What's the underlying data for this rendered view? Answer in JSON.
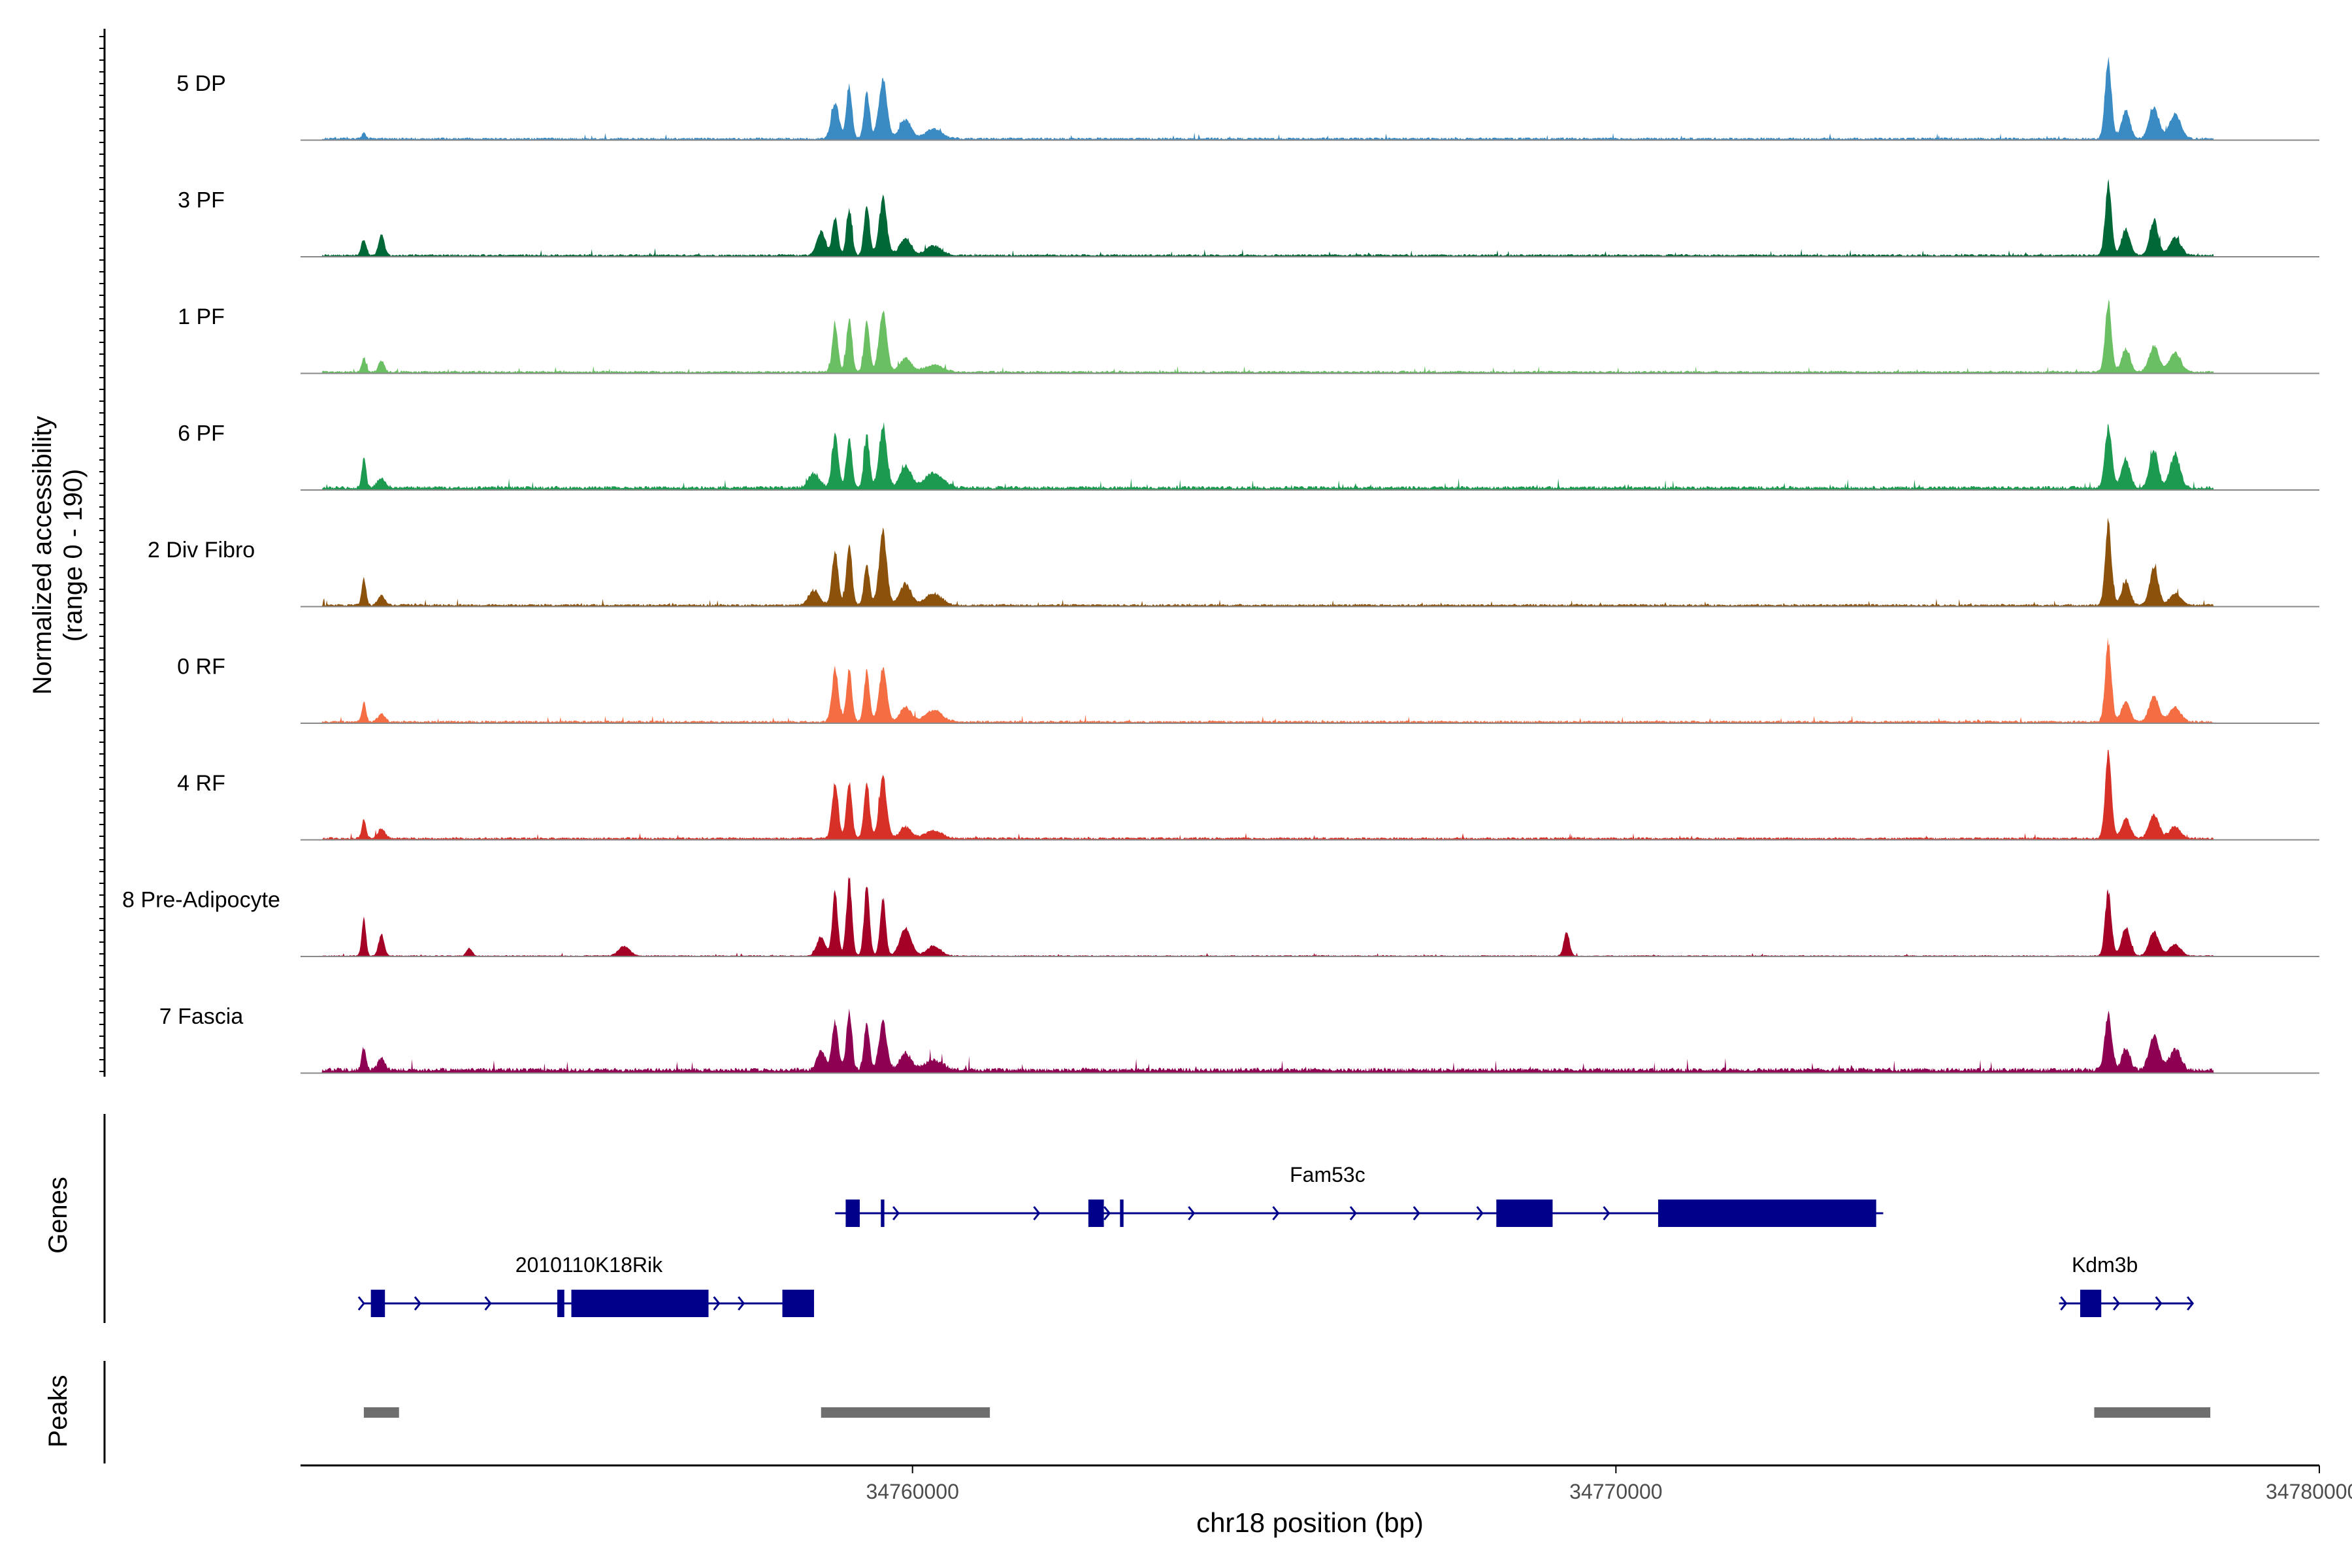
{
  "chart_data": {
    "type": "area",
    "title": "",
    "ylabel_line1": "Normalized accessibility",
    "ylabel_line2": "(range 0 - 190)",
    "ylim": [
      0,
      190
    ],
    "xlabel": "chr18 position (bp)",
    "xlim": [
      34751300,
      34780000
    ],
    "xticks": [
      {
        "value": 34760000,
        "label": "34760000"
      },
      {
        "value": 34770000,
        "label": "34770000"
      },
      {
        "value": 34780000,
        "label": "34780000"
      }
    ],
    "tracks": [
      {
        "name": "5 DP",
        "color": "#3a8ac4",
        "base": 2,
        "peaks": [
          [
            34752200,
            7,
            25
          ],
          [
            34758900,
            38,
            55
          ],
          [
            34759100,
            55,
            40
          ],
          [
            34759350,
            50,
            40
          ],
          [
            34759580,
            60,
            60
          ],
          [
            34759900,
            20,
            80
          ],
          [
            34760300,
            10,
            120
          ],
          [
            34777000,
            85,
            45
          ],
          [
            34777250,
            30,
            60
          ],
          [
            34777650,
            32,
            70
          ],
          [
            34777950,
            25,
            80
          ]
        ]
      },
      {
        "name": "3 PF",
        "color": "#006837",
        "base": 2,
        "peaks": [
          [
            34752200,
            17,
            35
          ],
          [
            34752450,
            22,
            40
          ],
          [
            34758700,
            25,
            60
          ],
          [
            34758900,
            40,
            40
          ],
          [
            34759100,
            48,
            40
          ],
          [
            34759350,
            52,
            40
          ],
          [
            34759580,
            58,
            55
          ],
          [
            34759900,
            18,
            80
          ],
          [
            34760300,
            10,
            110
          ],
          [
            34777000,
            75,
            45
          ],
          [
            34777250,
            28,
            60
          ],
          [
            34777650,
            36,
            60
          ],
          [
            34777950,
            18,
            80
          ]
        ]
      },
      {
        "name": "1 PF",
        "color": "#6abf62",
        "base": 2,
        "peaks": [
          [
            34752200,
            15,
            30
          ],
          [
            34752450,
            12,
            40
          ],
          [
            34758900,
            50,
            40
          ],
          [
            34759100,
            55,
            40
          ],
          [
            34759350,
            52,
            40
          ],
          [
            34759580,
            62,
            55
          ],
          [
            34759900,
            14,
            80
          ],
          [
            34760300,
            7,
            130
          ],
          [
            34777000,
            72,
            45
          ],
          [
            34777250,
            25,
            60
          ],
          [
            34777650,
            26,
            70
          ],
          [
            34777950,
            20,
            80
          ]
        ]
      },
      {
        "name": "6 PF",
        "color": "#1b9a50",
        "base": 3,
        "peaks": [
          [
            34752200,
            32,
            30
          ],
          [
            34752450,
            10,
            60
          ],
          [
            34758600,
            15,
            80
          ],
          [
            34758900,
            55,
            45
          ],
          [
            34759100,
            50,
            40
          ],
          [
            34759350,
            55,
            40
          ],
          [
            34759580,
            65,
            55
          ],
          [
            34759900,
            22,
            80
          ],
          [
            34760300,
            15,
            130
          ],
          [
            34777000,
            62,
            50
          ],
          [
            34777250,
            30,
            60
          ],
          [
            34777650,
            40,
            60
          ],
          [
            34777950,
            35,
            70
          ]
        ]
      },
      {
        "name": "2 Div Fibro",
        "color": "#8c510a",
        "base": 2,
        "peaks": [
          [
            34752200,
            28,
            30
          ],
          [
            34752450,
            10,
            50
          ],
          [
            34758600,
            15,
            80
          ],
          [
            34758900,
            55,
            45
          ],
          [
            34759100,
            65,
            40
          ],
          [
            34759350,
            42,
            40
          ],
          [
            34759580,
            75,
            55
          ],
          [
            34759900,
            22,
            80
          ],
          [
            34760300,
            12,
            120
          ],
          [
            34777000,
            85,
            45
          ],
          [
            34777250,
            25,
            60
          ],
          [
            34777650,
            40,
            60
          ],
          [
            34777950,
            12,
            80
          ]
        ]
      },
      {
        "name": "0 RF",
        "color": "#f46d43",
        "base": 2,
        "peaks": [
          [
            34752200,
            20,
            30
          ],
          [
            34752450,
            8,
            50
          ],
          [
            34758900,
            55,
            45
          ],
          [
            34759100,
            55,
            40
          ],
          [
            34759350,
            52,
            40
          ],
          [
            34759580,
            55,
            55
          ],
          [
            34759900,
            15,
            80
          ],
          [
            34760300,
            12,
            120
          ],
          [
            34777000,
            82,
            45
          ],
          [
            34777250,
            22,
            60
          ],
          [
            34777650,
            26,
            70
          ],
          [
            34777950,
            15,
            80
          ]
        ]
      },
      {
        "name": "4 RF",
        "color": "#d73027",
        "base": 2,
        "peaks": [
          [
            34752200,
            20,
            30
          ],
          [
            34752450,
            10,
            50
          ],
          [
            34758900,
            58,
            45
          ],
          [
            34759100,
            58,
            40
          ],
          [
            34759350,
            58,
            40
          ],
          [
            34759580,
            62,
            55
          ],
          [
            34759900,
            12,
            80
          ],
          [
            34760300,
            8,
            120
          ],
          [
            34777000,
            90,
            45
          ],
          [
            34777250,
            22,
            60
          ],
          [
            34777650,
            25,
            70
          ],
          [
            34777950,
            12,
            80
          ]
        ]
      },
      {
        "name": "8 Pre-Adipocyte",
        "color": "#a50026",
        "base": 1,
        "peaks": [
          [
            34752200,
            38,
            30
          ],
          [
            34752450,
            22,
            40
          ],
          [
            34753700,
            8,
            40
          ],
          [
            34755900,
            10,
            80
          ],
          [
            34758700,
            20,
            60
          ],
          [
            34758900,
            65,
            40
          ],
          [
            34759100,
            80,
            40
          ],
          [
            34759350,
            72,
            40
          ],
          [
            34759580,
            60,
            40
          ],
          [
            34759900,
            28,
            80
          ],
          [
            34760300,
            10,
            100
          ],
          [
            34769300,
            25,
            40
          ],
          [
            34777000,
            68,
            45
          ],
          [
            34777250,
            30,
            60
          ],
          [
            34777650,
            25,
            70
          ],
          [
            34777950,
            12,
            80
          ]
        ]
      },
      {
        "name": "7 Fascia",
        "color": "#8e0152",
        "base": 4,
        "peaks": [
          [
            34752200,
            22,
            30
          ],
          [
            34752450,
            12,
            50
          ],
          [
            34758700,
            20,
            60
          ],
          [
            34758900,
            48,
            45
          ],
          [
            34759100,
            62,
            40
          ],
          [
            34759350,
            48,
            40
          ],
          [
            34759580,
            50,
            55
          ],
          [
            34759900,
            18,
            80
          ],
          [
            34760300,
            10,
            130
          ],
          [
            34777000,
            58,
            50
          ],
          [
            34777250,
            22,
            60
          ],
          [
            34777650,
            36,
            70
          ],
          [
            34777950,
            22,
            80
          ]
        ]
      }
    ],
    "genes": [
      {
        "name": "Fam53c",
        "row": 0,
        "start": 34758900,
        "end": 34773800,
        "exons": [
          [
            34759050,
            34759250
          ],
          [
            34759550,
            34759600
          ],
          [
            34762500,
            34762720
          ],
          [
            34762950,
            34763000
          ],
          [
            34768300,
            34769100
          ],
          [
            34770600,
            34773700
          ]
        ],
        "arrows": [
          34759800,
          34761800,
          34762800,
          34764000,
          34765200,
          34766300,
          34767200,
          34768100,
          34769900
        ]
      },
      {
        "name": "2010110K18Rik",
        "row": 1,
        "start": 34752200,
        "end": 34758600,
        "exons": [
          [
            34752300,
            34752500
          ],
          [
            34754950,
            34755050
          ],
          [
            34755150,
            34757100
          ],
          [
            34758150,
            34758600
          ]
        ],
        "arrows": [
          34752200,
          34753000,
          34754000,
          34757250,
          34757600
        ]
      },
      {
        "name": "Kdm3b",
        "row": 1,
        "start": 34776300,
        "end": 34778200,
        "exons": [
          [
            34776600,
            34776900
          ]
        ],
        "arrows": [
          34776400,
          34777150,
          34777750,
          34778200
        ]
      }
    ],
    "peaks_track": [
      [
        34752200,
        34752700
      ],
      [
        34758700,
        34761100
      ],
      [
        34776800,
        34778450
      ]
    ],
    "panel_labels": {
      "genes": "Genes",
      "peaks": "Peaks"
    }
  }
}
